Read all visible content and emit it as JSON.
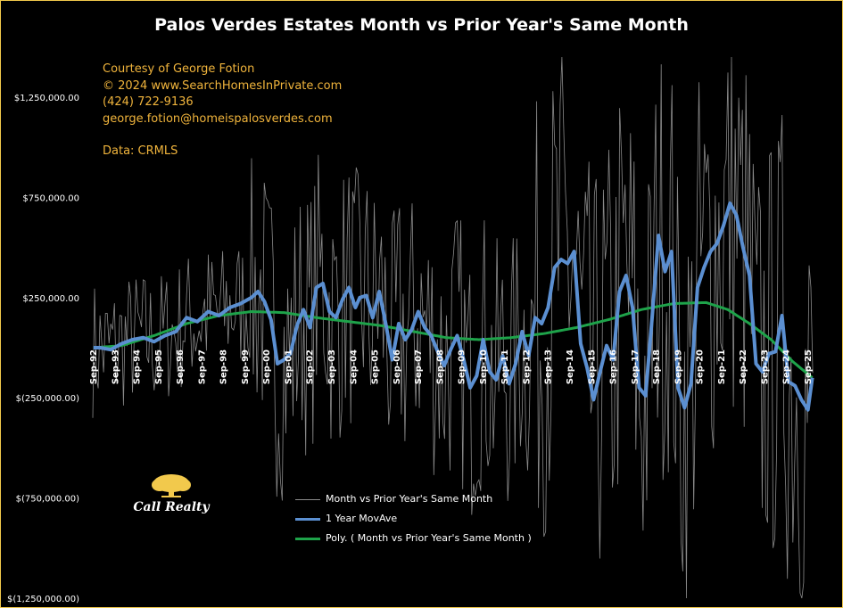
{
  "chart_data": {
    "type": "line",
    "title": "Palos Verdes Estates Month vs Prior Year's Same Month",
    "credits": [
      "Courtesy of George Fotion",
      "© 2024 www.SearchHomesInPrivate.com",
      "(424) 722-9136",
      "george.fotion@homeispalosverdes.com",
      "Data: CRMLS"
    ],
    "logo_text": "Call Realty",
    "xlabel": "",
    "ylabel": "",
    "ylim": [
      -1250000,
      1450000
    ],
    "y_ticks": [
      1250000,
      750000,
      250000,
      -250000,
      -750000,
      -1250000
    ],
    "y_tick_labels": [
      "$1,250,000.00",
      "$750,000.00",
      "$250,000.00",
      "$(250,000.00)",
      "$(750,000.00)",
      "$(1,250,000.00)"
    ],
    "x_tick_labels": [
      "Sep-92",
      "Sep-93",
      "Sep-94",
      "Sep-95",
      "Sep-96",
      "Sep-97",
      "Sep-98",
      "Sep-99",
      "Sep-00",
      "Sep-01",
      "Sep-02",
      "Sep-03",
      "Sep-04",
      "Sep-05",
      "Sep-06",
      "Sep-07",
      "Sep-08",
      "Sep-09",
      "Sep-10",
      "Sep-11",
      "Sep-12",
      "Sep-13",
      "Sep-14",
      "Sep-15",
      "Sep-16",
      "Sep-17",
      "Sep-18",
      "Sep-19",
      "Sep-20",
      "Sep-21",
      "Sep-22",
      "Sep-23",
      "Sep-24",
      "Sep-25"
    ],
    "x_range": [
      1992.67,
      2026.0
    ],
    "grid": false,
    "legend_position": "bottom-center",
    "colors": {
      "monthly": "#8a8a8a",
      "moving_average": "#5b8fd1",
      "trend": "#1ea34a",
      "credits": "#f0b43c",
      "border": "#f2c94c"
    },
    "series": [
      {
        "name": "Month vs Prior Year's Same Month",
        "style": "thin-gray",
        "note_values": "Noisy monthly series; values generated from the moving average plus oscillation in the script",
        "values": []
      },
      {
        "name": "1 Year MovAve",
        "style": "thick-blue",
        "x": [
          1992.7,
          1993.0,
          1993.5,
          1994.0,
          1994.5,
          1995.0,
          1995.5,
          1996.0,
          1996.5,
          1997.0,
          1997.5,
          1998.0,
          1998.5,
          1999.0,
          1999.5,
          2000.0,
          2000.3,
          2000.6,
          2000.9,
          2001.2,
          2001.5,
          2001.8,
          2002.1,
          2002.4,
          2002.7,
          2003.0,
          2003.3,
          2003.6,
          2003.9,
          2004.2,
          2004.5,
          2004.8,
          2005.0,
          2005.3,
          2005.6,
          2005.9,
          2006.2,
          2006.5,
          2006.8,
          2007.1,
          2007.4,
          2007.7,
          2008.0,
          2008.3,
          2008.6,
          2008.9,
          2009.2,
          2009.5,
          2009.8,
          2010.1,
          2010.4,
          2010.7,
          2011.0,
          2011.3,
          2011.6,
          2011.9,
          2012.2,
          2012.5,
          2012.8,
          2013.1,
          2013.4,
          2013.7,
          2014.0,
          2014.3,
          2014.6,
          2014.9,
          2015.2,
          2015.5,
          2015.8,
          2016.1,
          2016.4,
          2016.7,
          2017.0,
          2017.3,
          2017.6,
          2017.9,
          2018.2,
          2018.5,
          2018.8,
          2019.1,
          2019.4,
          2019.7,
          2020.0,
          2020.3,
          2020.6,
          2020.9,
          2021.2,
          2021.5,
          2021.8,
          2022.1,
          2022.4,
          2022.7,
          2023.0,
          2023.3,
          2023.6,
          2023.9,
          2024.2,
          2024.5,
          2024.8,
          2025.1,
          2025.4,
          2025.7,
          2025.9
        ],
        "values": [
          0,
          0,
          -10000,
          20000,
          40000,
          50000,
          30000,
          60000,
          80000,
          150000,
          130000,
          180000,
          160000,
          200000,
          220000,
          250000,
          280000,
          230000,
          140000,
          -80000,
          -60000,
          -30000,
          110000,
          190000,
          100000,
          300000,
          320000,
          180000,
          150000,
          240000,
          300000,
          200000,
          250000,
          260000,
          150000,
          280000,
          120000,
          -60000,
          120000,
          40000,
          90000,
          180000,
          100000,
          60000,
          -20000,
          -90000,
          -10000,
          60000,
          -60000,
          -200000,
          -140000,
          40000,
          -120000,
          -160000,
          -40000,
          -180000,
          -80000,
          80000,
          -40000,
          150000,
          120000,
          200000,
          400000,
          440000,
          420000,
          480000,
          20000,
          -100000,
          -260000,
          -120000,
          10000,
          -60000,
          280000,
          360000,
          200000,
          -200000,
          -240000,
          150000,
          560000,
          380000,
          480000,
          -200000,
          -300000,
          -180000,
          300000,
          400000,
          480000,
          520000,
          610000,
          720000,
          660000,
          500000,
          360000,
          -80000,
          -120000,
          -30000,
          -20000,
          160000,
          -170000,
          -190000,
          -260000,
          -310000,
          -150000
        ]
      },
      {
        "name": "Poly. ( Month vs Prior Year's Same Month )",
        "style": "green-trend",
        "x": [
          1992.7,
          1994.0,
          1995.5,
          1997.0,
          1998.5,
          2000.0,
          2001.5,
          2003.0,
          2004.5,
          2006.0,
          2007.5,
          2009.0,
          2010.5,
          2012.0,
          2013.5,
          2015.0,
          2016.5,
          2018.0,
          2019.5,
          2021.0,
          2022.0,
          2023.0,
          2024.0,
          2025.0,
          2025.9
        ],
        "values": [
          0,
          10000,
          60000,
          120000,
          160000,
          180000,
          175000,
          150000,
          130000,
          110000,
          80000,
          50000,
          40000,
          50000,
          70000,
          100000,
          140000,
          190000,
          220000,
          225000,
          190000,
          120000,
          40000,
          -70000,
          -150000
        ]
      }
    ]
  }
}
